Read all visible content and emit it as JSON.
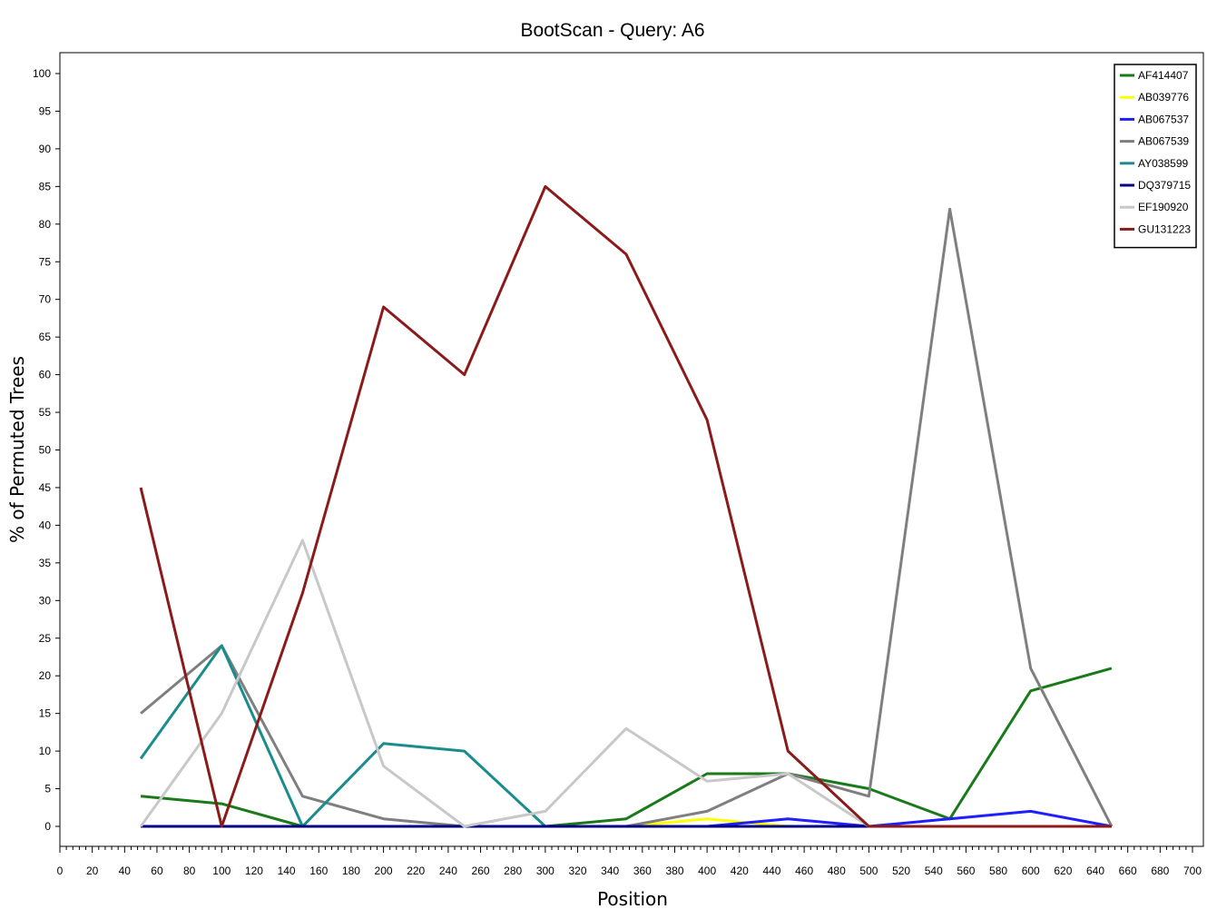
{
  "chart_data": {
    "type": "line",
    "title": "BootScan - Query: A6",
    "xlabel": "Position",
    "ylabel": "% of Permuted Trees",
    "xlim": [
      0,
      700
    ],
    "ylim": [
      0,
      100
    ],
    "x_ticks": [
      "0",
      "20",
      "40",
      "60",
      "80",
      "100",
      "120",
      "140",
      "160",
      "180",
      "200",
      "220",
      "240",
      "260",
      "280",
      "300",
      "320",
      "340",
      "360",
      "380",
      "400",
      "420",
      "440",
      "460",
      "480",
      "500",
      "520",
      "540",
      "560",
      "580",
      "600",
      "620",
      "640",
      "660",
      "680",
      "700"
    ],
    "y_ticks": [
      "0",
      "5",
      "10",
      "15",
      "20",
      "25",
      "30",
      "35",
      "40",
      "45",
      "50",
      "55",
      "60",
      "65",
      "70",
      "75",
      "80",
      "85",
      "90",
      "95",
      "100"
    ],
    "legend_position": "top-right",
    "x": [
      50,
      100,
      150,
      200,
      250,
      300,
      350,
      400,
      450,
      500,
      550,
      600,
      650
    ],
    "series": [
      {
        "name": "AF414407",
        "color": "#1a7a1a",
        "values": [
          4,
          3,
          0,
          0,
          0,
          0,
          1,
          7,
          7,
          5,
          1,
          18,
          21
        ]
      },
      {
        "name": "AB039776",
        "color": "#ffff00",
        "values": [
          0,
          0,
          0,
          0,
          0,
          0,
          0,
          1,
          0,
          0,
          0,
          0,
          0
        ]
      },
      {
        "name": "AB067537",
        "color": "#1f1fff",
        "values": [
          0,
          0,
          0,
          0,
          0,
          0,
          0,
          0,
          1,
          0,
          1,
          2,
          0
        ]
      },
      {
        "name": "AB067539",
        "color": "#7f7f7f",
        "values": [
          15,
          24,
          4,
          1,
          0,
          0,
          0,
          2,
          7,
          4,
          82,
          21,
          0
        ]
      },
      {
        "name": "AY038599",
        "color": "#1a8c8c",
        "values": [
          9,
          24,
          0,
          11,
          10,
          0,
          0,
          0,
          0,
          0,
          0,
          0,
          0
        ]
      },
      {
        "name": "DQ379715",
        "color": "#000080",
        "values": [
          0,
          0,
          0,
          0,
          0,
          0,
          0,
          0,
          0,
          0,
          0,
          0,
          0
        ]
      },
      {
        "name": "EF190920",
        "color": "#c8c8c8",
        "values": [
          0,
          15,
          38,
          8,
          0,
          2,
          13,
          6,
          7,
          0,
          0,
          0,
          0
        ]
      },
      {
        "name": "GU131223",
        "color": "#8b1a1a",
        "values": [
          45,
          0,
          31,
          69,
          60,
          85,
          76,
          54,
          10,
          0,
          0,
          0,
          0
        ]
      }
    ]
  }
}
